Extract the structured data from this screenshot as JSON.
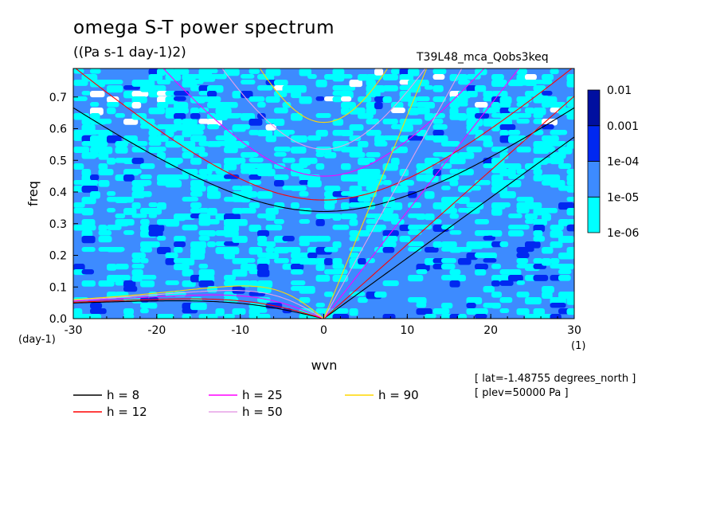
{
  "title": "omega S-T power spectrum",
  "units": "((Pa s-1 day-1)2)",
  "experiment": "T39L48_mca_Qobs3keq",
  "metadata": [
    "[ lat=-1.48755 degrees_north ]",
    "[ plev=50000 Pa ]"
  ],
  "colors": {
    "levels": [
      "#00ffff",
      "#3d8bff",
      "#0028f0",
      "#000fa0",
      "#3d0aa8"
    ],
    "h8": "#000000",
    "h12": "#ff0000",
    "h25": "#ff00ff",
    "h50": "#e6a0e6",
    "h90": "#ffd700"
  },
  "chart_data": {
    "type": "heatmap",
    "title": "omega S-T power spectrum",
    "subtitle": "((Pa s-1 day-1)2)",
    "xlabel": "wvn",
    "ylabel": "freq",
    "x_unit": "(1)",
    "y_unit": "(day-1)",
    "xlim": [
      -30,
      30
    ],
    "ylim": [
      0,
      0.79
    ],
    "x_ticks": [
      -30,
      -20,
      -10,
      0,
      10,
      20,
      30
    ],
    "x_tick_labels": [
      "-30",
      "-20",
      "-10",
      "0",
      "10",
      "20",
      "30"
    ],
    "y_ticks": [
      0,
      0.1,
      0.2,
      0.3,
      0.4,
      0.5,
      0.6,
      0.7
    ],
    "y_tick_labels": [
      "0.0",
      "0.1",
      "0.2",
      "0.3",
      "0.4",
      "0.5",
      "0.6",
      "0.7"
    ],
    "colorbar": {
      "levels": [
        1e-06,
        1e-05,
        0.0001,
        0.001,
        0.01
      ],
      "labels": [
        "1e-06",
        "1e-05",
        "1e-04",
        "0.001",
        "0.01"
      ]
    },
    "dispersion_curves": [
      {
        "name": "h =  8",
        "h": 8
      },
      {
        "name": "h = 12",
        "h": 12
      },
      {
        "name": "h = 25",
        "h": 25
      },
      {
        "name": "h = 50",
        "h": 50
      },
      {
        "name": "h = 90",
        "h": 90
      }
    ]
  }
}
